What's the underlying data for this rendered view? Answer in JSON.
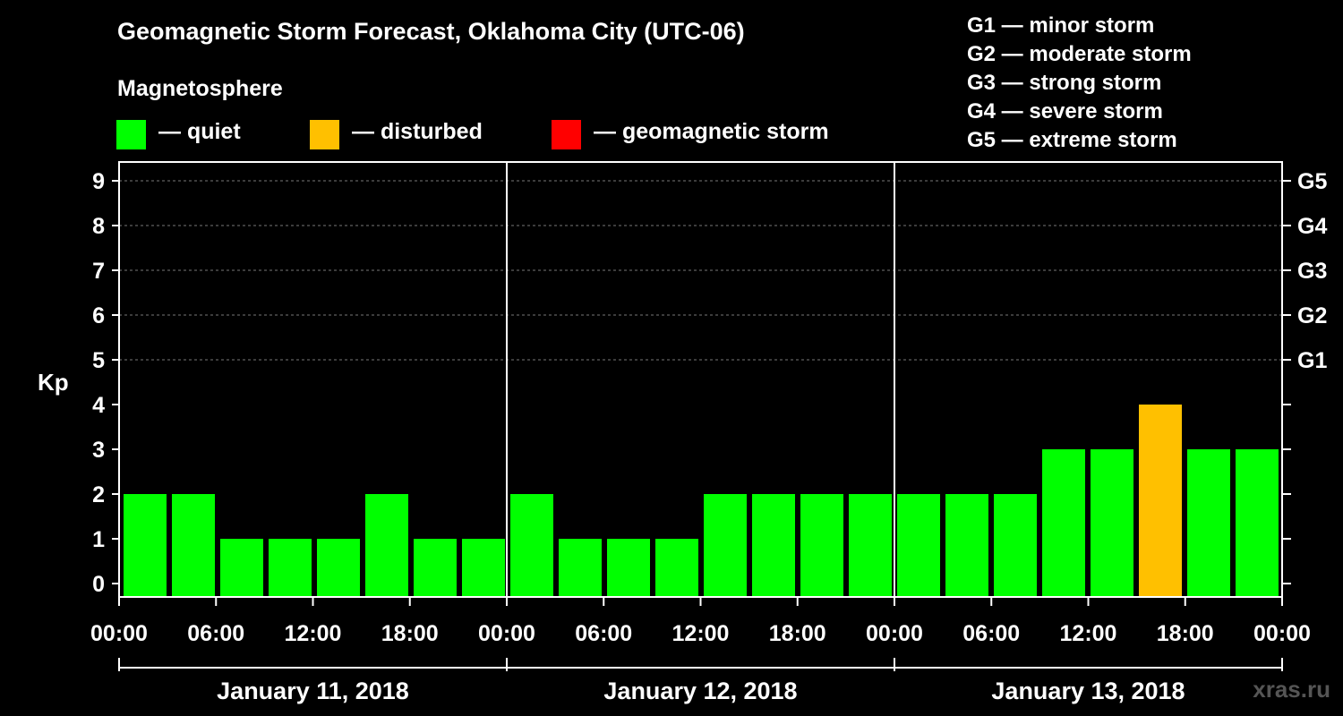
{
  "header": {
    "title": "Geomagnetic Storm Forecast, Oklahoma City (UTC-06)",
    "subtitle": "Magnetosphere"
  },
  "legend": [
    {
      "label": "— quiet",
      "color": "#00ff00"
    },
    {
      "label": "— disturbed",
      "color": "#ffc000"
    },
    {
      "label": "— geomagnetic storm",
      "color": "#ff0000"
    }
  ],
  "g_scale": [
    "G1 — minor storm",
    "G2 — moderate storm",
    "G3 — strong storm",
    "G4 — severe storm",
    "G5 — extreme storm"
  ],
  "watermark": "xras.ru",
  "chart_data": {
    "type": "bar",
    "ylabel": "Kp",
    "ylim": [
      0,
      9
    ],
    "yticks": [
      "0",
      "1",
      "2",
      "3",
      "4",
      "5",
      "6",
      "7",
      "8",
      "9"
    ],
    "right_ticks": [
      {
        "kp": 5,
        "label": "G1"
      },
      {
        "kp": 6,
        "label": "G2"
      },
      {
        "kp": 7,
        "label": "G3"
      },
      {
        "kp": 8,
        "label": "G4"
      },
      {
        "kp": 9,
        "label": "G5"
      }
    ],
    "xtick_labels": [
      "00:00",
      "06:00",
      "12:00",
      "18:00",
      "00:00",
      "06:00",
      "12:00",
      "18:00",
      "00:00",
      "06:00",
      "12:00",
      "18:00",
      "00:00"
    ],
    "days": [
      "January 11, 2018",
      "January 12, 2018",
      "January 13, 2018"
    ],
    "values": [
      2,
      2,
      1,
      1,
      1,
      2,
      1,
      1,
      2,
      1,
      1,
      1,
      2,
      2,
      2,
      2,
      2,
      2,
      2,
      3,
      3,
      4,
      3,
      3
    ],
    "colors": {
      "quiet": "#00ff00",
      "disturbed": "#ffc000",
      "storm": "#ff0000"
    },
    "thresholds": {
      "disturbed": 4,
      "storm": 5
    }
  }
}
